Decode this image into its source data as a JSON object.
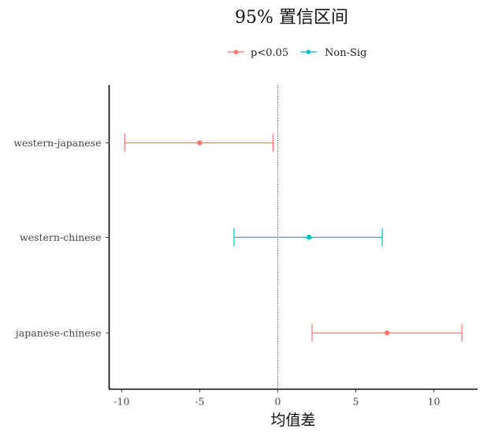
{
  "chart_data": {
    "type": "errorbar",
    "title": "95% 置信区间",
    "xlabel": "均值差",
    "ylabel": "",
    "xlim": [
      -10.8,
      12.8
    ],
    "xticks": [
      -10,
      -5,
      0,
      5,
      10
    ],
    "xtick_labels": [
      "-10",
      "-5",
      "0",
      "5",
      "10"
    ],
    "reference_line": {
      "x": 0,
      "style": "dotted"
    },
    "grid": false,
    "legend": {
      "placement": "top",
      "entries": [
        {
          "label": "p<0.05",
          "color": "#F8766D"
        },
        {
          "label": "Non-Sig",
          "color": "#00BFC4"
        }
      ]
    },
    "categories": [
      "western-japanese",
      "western-chinese",
      "japanese-chinese"
    ],
    "points": [
      {
        "category": "western-japanese",
        "estimate": -5.0,
        "lower": -9.8,
        "upper": -0.3,
        "group": "p<0.05"
      },
      {
        "category": "western-chinese",
        "estimate": 2.0,
        "lower": -2.8,
        "upper": 6.7,
        "group": "Non-Sig"
      },
      {
        "category": "japanese-chinese",
        "estimate": 7.0,
        "lower": 2.2,
        "upper": 11.8,
        "group": "p<0.05"
      }
    ]
  }
}
